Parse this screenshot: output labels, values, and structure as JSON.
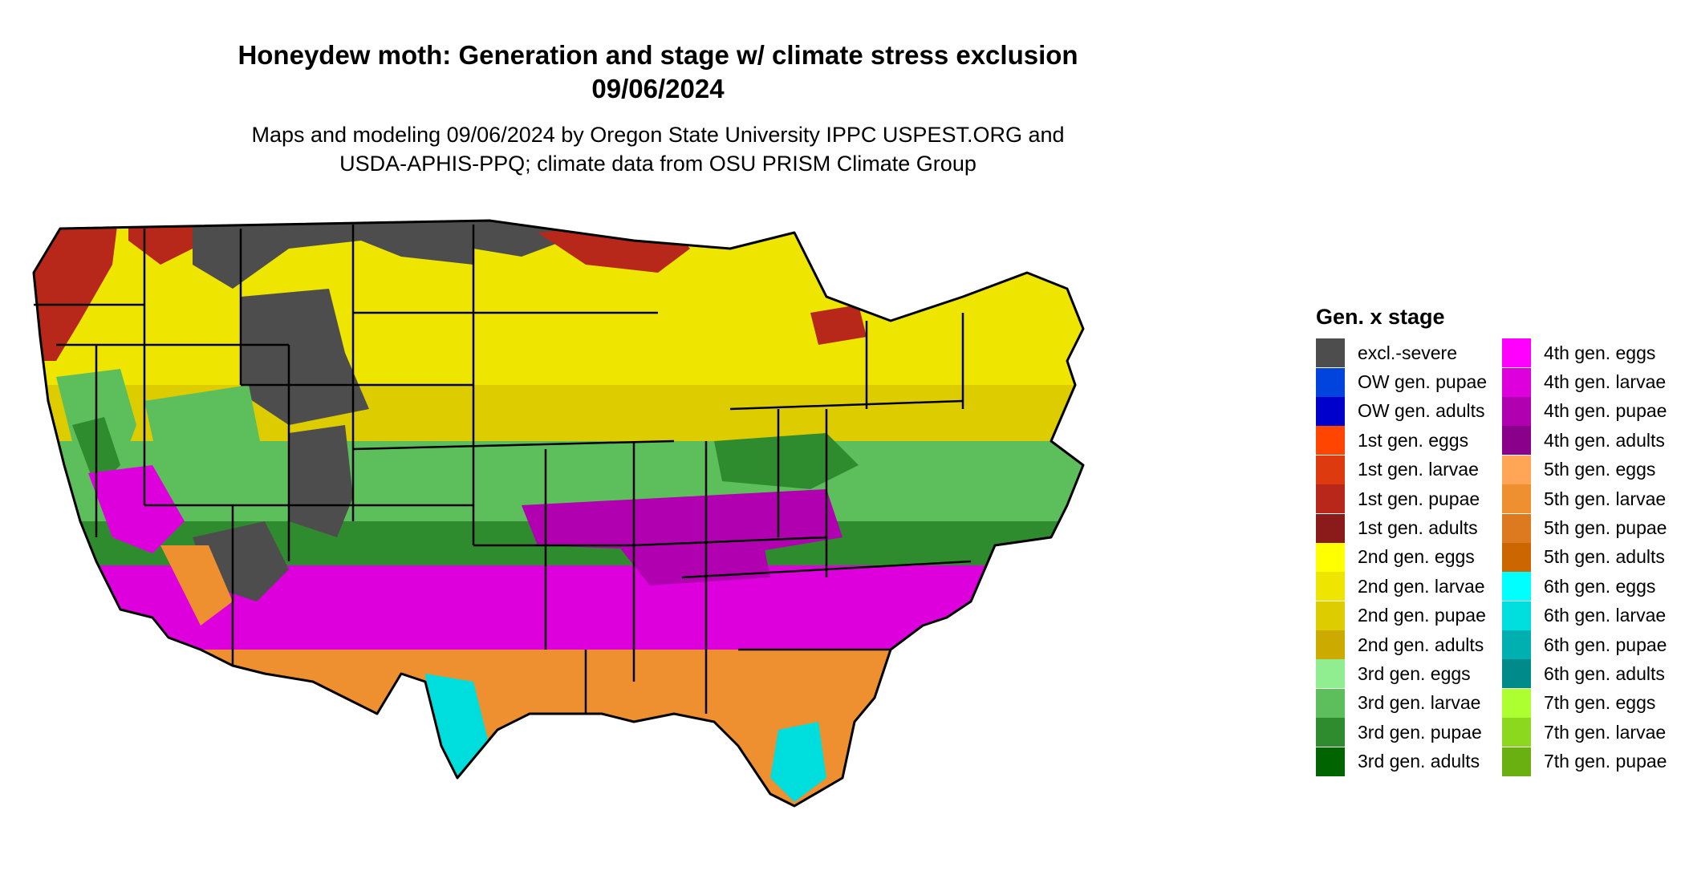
{
  "title": {
    "line1": "Honeydew moth: Generation and stage w/ climate stress exclusion",
    "line2": "09/06/2024"
  },
  "subtitle": {
    "line1": "Maps and modeling 09/06/2024 by Oregon State University IPPC USPEST.ORG and",
    "line2": "USDA-APHIS-PPQ; climate data from OSU PRISM Climate Group"
  },
  "legend": {
    "title": "Gen. x stage",
    "column1": [
      {
        "label": "excl.-severe",
        "color": "#4d4d4d"
      },
      {
        "label": "OW gen. pupae",
        "color": "#0044dd"
      },
      {
        "label": "OW gen. adults",
        "color": "#0000cc"
      },
      {
        "label": "1st gen. eggs",
        "color": "#ff4500"
      },
      {
        "label": "1st gen. larvae",
        "color": "#dd3a10"
      },
      {
        "label": "1st gen. pupae",
        "color": "#b8281a"
      },
      {
        "label": "1st gen. adults",
        "color": "#8b1a1a"
      },
      {
        "label": "2nd gen. eggs",
        "color": "#ffff00"
      },
      {
        "label": "2nd gen. larvae",
        "color": "#eee600"
      },
      {
        "label": "2nd gen. pupae",
        "color": "#ddcc00"
      },
      {
        "label": "2nd gen. adults",
        "color": "#ccaa00"
      },
      {
        "label": "3rd gen. eggs",
        "color": "#90ee90"
      },
      {
        "label": "3rd gen. larvae",
        "color": "#5cbf5c"
      },
      {
        "label": "3rd gen. pupae",
        "color": "#2e8b2e"
      },
      {
        "label": "3rd gen. adults",
        "color": "#006400"
      }
    ],
    "column2": [
      {
        "label": "4th gen. eggs",
        "color": "#ff00ff"
      },
      {
        "label": "4th gen. larvae",
        "color": "#dd00dd"
      },
      {
        "label": "4th gen. pupae",
        "color": "#b000b0"
      },
      {
        "label": "4th gen. adults",
        "color": "#8b008b"
      },
      {
        "label": "5th gen. eggs",
        "color": "#ffa555"
      },
      {
        "label": "5th gen. larvae",
        "color": "#ee9030"
      },
      {
        "label": "5th gen. pupae",
        "color": "#dd7a20"
      },
      {
        "label": "5th gen. adults",
        "color": "#cc6600"
      },
      {
        "label": "6th gen. eggs",
        "color": "#00ffff"
      },
      {
        "label": "6th gen. larvae",
        "color": "#00dddd"
      },
      {
        "label": "6th gen. pupae",
        "color": "#00b0b0"
      },
      {
        "label": "6th gen. adults",
        "color": "#008b8b"
      },
      {
        "label": "7th gen. eggs",
        "color": "#adff2f"
      },
      {
        "label": "7th gen. larvae",
        "color": "#8cd81e"
      },
      {
        "label": "7th gen. pupae",
        "color": "#6ab010"
      }
    ]
  },
  "map": {
    "region": "Contiguous United States",
    "border_color": "#000000"
  }
}
